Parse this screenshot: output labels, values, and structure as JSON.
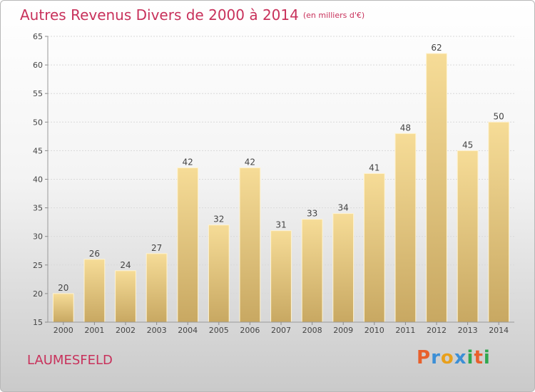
{
  "chart_data": {
    "type": "bar",
    "title": "Autres Revenus Divers de 2000 à 2014",
    "subtitle": "(en milliers d'€)",
    "categories": [
      "2000",
      "2001",
      "2002",
      "2003",
      "2004",
      "2005",
      "2006",
      "2007",
      "2008",
      "2009",
      "2010",
      "2011",
      "2012",
      "2013",
      "2014"
    ],
    "values": [
      20,
      26,
      24,
      27,
      42,
      32,
      42,
      31,
      33,
      34,
      41,
      48,
      62,
      45,
      50
    ],
    "ylim": [
      15,
      65
    ],
    "yticks": [
      15,
      20,
      25,
      30,
      35,
      40,
      45,
      50,
      55,
      60,
      65
    ],
    "grid": true,
    "bar_color": "#e8c87a"
  },
  "commune": "LAUMESFELD",
  "logo": {
    "letters": [
      "P",
      "r",
      "o",
      "x",
      "i",
      "t",
      "i"
    ],
    "colors": [
      "#e8602c",
      "#3c8fd6",
      "#e8a01c",
      "#3c8fd6",
      "#2fa84f",
      "#e8602c",
      "#2fa84f"
    ]
  }
}
